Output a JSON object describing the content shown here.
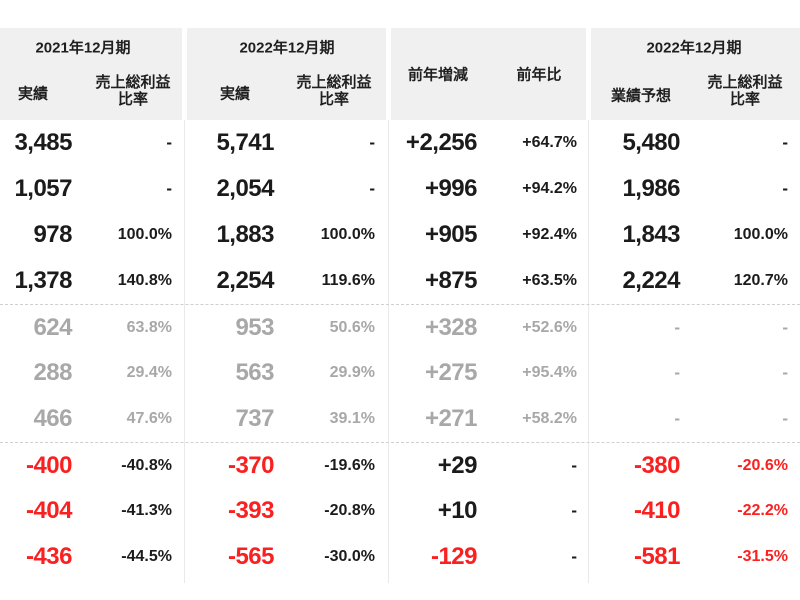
{
  "header": {
    "s1": {
      "title": "2021年12月期",
      "col1": "実績",
      "col2_line1": "売上総利益",
      "col2_line2": "比率"
    },
    "s2": {
      "title": "2022年12月期",
      "col1": "実績",
      "col2_line1": "売上総利益",
      "col2_line2": "比率"
    },
    "s3": {
      "col1": "前年増減",
      "col2": "前年比"
    },
    "s4": {
      "title": "2022年12月期",
      "col1": "業績予想",
      "col2_line1": "売上総利益",
      "col2_line2": "比率"
    }
  },
  "colors": {
    "negative_red": "#fb2020",
    "muted_gray": "#a8a8a8",
    "text_black": "#1b1b1b",
    "header_band": "#f0f0f0"
  },
  "rows": [
    {
      "cells": [
        "3,485",
        "-",
        "5,741",
        "-",
        "+2,256",
        "+64.7%",
        "5,480",
        "-"
      ],
      "tone": [
        "k",
        "k",
        "k",
        "k",
        "k",
        "k",
        "k",
        "k"
      ]
    },
    {
      "cells": [
        "1,057",
        "-",
        "2,054",
        "-",
        "+996",
        "+94.2%",
        "1,986",
        "-"
      ],
      "tone": [
        "k",
        "k",
        "k",
        "k",
        "k",
        "k",
        "k",
        "k"
      ]
    },
    {
      "cells": [
        "978",
        "100.0%",
        "1,883",
        "100.0%",
        "+905",
        "+92.4%",
        "1,843",
        "100.0%"
      ],
      "tone": [
        "k",
        "k",
        "k",
        "k",
        "k",
        "k",
        "k",
        "k"
      ]
    },
    {
      "cells": [
        "1,378",
        "140.8%",
        "2,254",
        "119.6%",
        "+875",
        "+63.5%",
        "2,224",
        "120.7%"
      ],
      "tone": [
        "k",
        "k",
        "k",
        "k",
        "k",
        "k",
        "k",
        "k"
      ]
    },
    {
      "cells": [
        "624",
        "63.8%",
        "953",
        "50.6%",
        "+328",
        "+52.6%",
        "-",
        "-"
      ],
      "tone": [
        "g",
        "g",
        "g",
        "g",
        "g",
        "g",
        "g",
        "g"
      ]
    },
    {
      "cells": [
        "288",
        "29.4%",
        "563",
        "29.9%",
        "+275",
        "+95.4%",
        "-",
        "-"
      ],
      "tone": [
        "g",
        "g",
        "g",
        "g",
        "g",
        "g",
        "g",
        "g"
      ]
    },
    {
      "cells": [
        "466",
        "47.6%",
        "737",
        "39.1%",
        "+271",
        "+58.2%",
        "-",
        "-"
      ],
      "tone": [
        "g",
        "g",
        "g",
        "g",
        "g",
        "g",
        "g",
        "g"
      ]
    },
    {
      "cells": [
        "-400",
        "-40.8%",
        "-370",
        "-19.6%",
        "+29",
        "-",
        "-380",
        "-20.6%"
      ],
      "tone": [
        "r",
        "k",
        "r",
        "k",
        "k",
        "k",
        "r",
        "r"
      ]
    },
    {
      "cells": [
        "-404",
        "-41.3%",
        "-393",
        "-20.8%",
        "+10",
        "-",
        "-410",
        "-22.2%"
      ],
      "tone": [
        "r",
        "k",
        "r",
        "k",
        "k",
        "k",
        "r",
        "r"
      ]
    },
    {
      "cells": [
        "-436",
        "-44.5%",
        "-565",
        "-30.0%",
        "-129",
        "-",
        "-581",
        "-31.5%"
      ],
      "tone": [
        "r",
        "k",
        "r",
        "k",
        "r",
        "k",
        "r",
        "r"
      ]
    }
  ]
}
